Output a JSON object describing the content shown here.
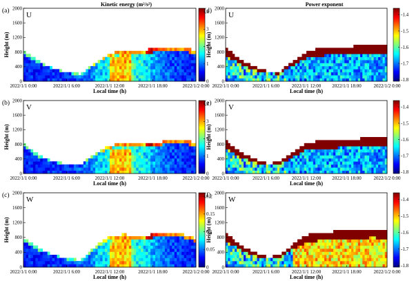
{
  "figure": {
    "column_titles": [
      "Kinetic energy (m²/s²)",
      "Power exponent"
    ]
  },
  "colors": {
    "colormap_jet": [
      "#00007f",
      "#0000ff",
      "#007fff",
      "#00ffff",
      "#7fff7f",
      "#ffff00",
      "#ff7f00",
      "#ff0000",
      "#7f0000"
    ],
    "background": "#ffffff",
    "axis": "#000000"
  },
  "chart_data": [
    {
      "type": "heatmap",
      "panel_label": "(a)",
      "component": "U",
      "quantity": "kinetic_energy",
      "xlabel": "Local time (h)",
      "ylabel": "Height (m)",
      "xticks": [
        "2022/1/1 0:00",
        "2022/1/1 6:00",
        "2022/1/1 12:00",
        "2022/1/1 18:00",
        "2022/1/2 0:00"
      ],
      "yticks": [
        0,
        400,
        800,
        1200,
        1600,
        2000
      ],
      "ylim": [
        0,
        2000
      ],
      "colorbar": {
        "ticks": [
          0,
          1,
          2,
          3,
          4
        ],
        "range": [
          0,
          4.2
        ]
      },
      "boundary_layer_top": {
        "time_h": [
          0,
          2,
          4,
          6,
          8,
          10,
          12,
          14,
          16,
          18,
          20,
          22,
          24
        ],
        "height_m": [
          840,
          560,
          380,
          250,
          200,
          520,
          760,
          860,
          860,
          880,
          900,
          920,
          850
        ]
      }
    },
    {
      "type": "heatmap",
      "panel_label": "(b)",
      "component": "V",
      "quantity": "kinetic_energy",
      "xlabel": "Local time (h)",
      "ylabel": "Height (m)",
      "xticks": [
        "2022/1/1 0:00",
        "2022/1/1 6:00",
        "2022/1/1 12:00",
        "2022/1/1 18:00",
        "2022/1/2 0:00"
      ],
      "yticks": [
        0,
        400,
        800,
        1200,
        1600,
        2000
      ],
      "ylim": [
        0,
        2000
      ],
      "colorbar": {
        "ticks": [
          0,
          1,
          2,
          3,
          4
        ],
        "range": [
          0,
          4.2
        ]
      },
      "boundary_layer_top": {
        "time_h": [
          0,
          2,
          4,
          6,
          8,
          10,
          12,
          14,
          16,
          18,
          20,
          22,
          24
        ],
        "height_m": [
          820,
          520,
          360,
          250,
          250,
          560,
          780,
          820,
          800,
          820,
          900,
          920,
          850
        ]
      }
    },
    {
      "type": "heatmap",
      "panel_label": "(c)",
      "component": "W",
      "quantity": "kinetic_energy",
      "xlabel": "Local time (h)",
      "ylabel": "Height (m)",
      "xticks": [
        "2022/1/1 0:00",
        "2022/1/1 6:00",
        "2022/1/1 12:00",
        "2022/1/1 18:00",
        "2022/1/2 0:00"
      ],
      "yticks": [
        0,
        400,
        800,
        1200,
        1600,
        2000
      ],
      "ylim": [
        0,
        2000
      ],
      "colorbar": {
        "ticks": [
          0,
          0.05,
          0.1,
          0.15,
          0.2
        ],
        "range": [
          0,
          0.21
        ]
      },
      "boundary_layer_top": {
        "time_h": [
          0,
          2,
          4,
          6,
          8,
          10,
          12,
          14,
          16,
          18,
          20,
          22,
          24
        ],
        "height_m": [
          780,
          520,
          360,
          220,
          200,
          560,
          820,
          880,
          820,
          880,
          880,
          900,
          760
        ]
      }
    },
    {
      "type": "heatmap",
      "panel_label": "(d)",
      "component": "U",
      "quantity": "power_exponent",
      "xlabel": "Local time (h)",
      "ylabel": "Height (m)",
      "xticks": [
        "2022/1/1 0:00",
        "2022/1/1 6:00",
        "2022/1/1 12:00",
        "2022/1/1 18:00",
        "2022/1/2 0:00"
      ],
      "yticks": [
        0,
        400,
        800,
        1200,
        1600,
        2000
      ],
      "ylim": [
        0,
        2000
      ],
      "colorbar": {
        "ticks": [
          -1.4,
          -1.5,
          -1.6,
          -1.7,
          -1.8
        ],
        "range": [
          -1.81,
          -1.36
        ]
      },
      "boundary_layer_top": {
        "time_h": [
          0,
          2,
          4,
          6,
          8,
          10,
          12,
          14,
          16,
          18,
          20,
          22,
          24
        ],
        "height_m": [
          920,
          620,
          420,
          280,
          260,
          560,
          800,
          900,
          920,
          940,
          980,
          1000,
          980
        ]
      }
    },
    {
      "type": "heatmap",
      "panel_label": "(e)",
      "component": "V",
      "quantity": "power_exponent",
      "xlabel": "Local time (h)",
      "ylabel": "Height (m)",
      "xticks": [
        "2022/1/1 0:00",
        "2022/1/1 6:00",
        "2022/1/1 12:00",
        "2022/1/1 18:00",
        "2022/1/2 0:00"
      ],
      "yticks": [
        0,
        400,
        800,
        1200,
        1600,
        2000
      ],
      "ylim": [
        0,
        2000
      ],
      "colorbar": {
        "ticks": [
          -1.4,
          -1.5,
          -1.6,
          -1.7,
          -1.8
        ],
        "range": [
          -1.81,
          -1.36
        ]
      },
      "boundary_layer_top": {
        "time_h": [
          0,
          2,
          4,
          6,
          8,
          10,
          12,
          14,
          16,
          18,
          20,
          22,
          24
        ],
        "height_m": [
          900,
          600,
          420,
          280,
          300,
          600,
          820,
          900,
          900,
          920,
          960,
          1000,
          980
        ]
      }
    },
    {
      "type": "heatmap",
      "panel_label": "(f)",
      "component": "W",
      "quantity": "power_exponent",
      "xlabel": "Local time (h)",
      "ylabel": "Height (m)",
      "xticks": [
        "2022/1/1 0:00",
        "2022/1/1 6:00",
        "2022/1/1 12:00",
        "2022/1/1 18:00",
        "2022/1/2 0:00"
      ],
      "yticks": [
        0,
        400,
        800,
        1200,
        1600,
        2000
      ],
      "ylim": [
        0,
        2000
      ],
      "colorbar": {
        "ticks": [
          -1.4,
          -1.5,
          -1.6,
          -1.7,
          -1.8
        ],
        "range": [
          -1.81,
          -1.36
        ]
      },
      "boundary_layer_top": {
        "time_h": [
          0,
          2,
          4,
          6,
          8,
          10,
          12,
          14,
          16,
          18,
          20,
          22,
          24
        ],
        "height_m": [
          920,
          620,
          420,
          280,
          300,
          620,
          860,
          920,
          960,
          980,
          1000,
          1020,
          980
        ]
      }
    }
  ]
}
